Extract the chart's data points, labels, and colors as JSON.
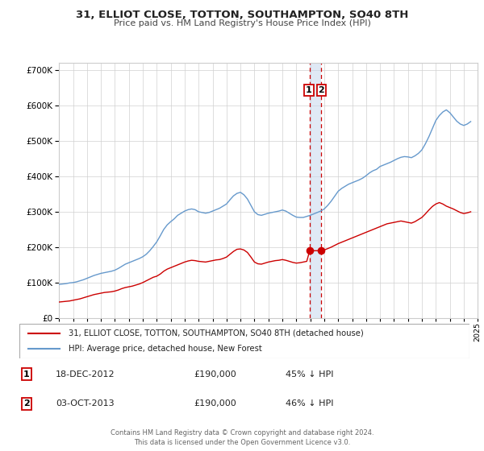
{
  "title": "31, ELLIOT CLOSE, TOTTON, SOUTHAMPTON, SO40 8TH",
  "subtitle": "Price paid vs. HM Land Registry's House Price Index (HPI)",
  "legend1": "31, ELLIOT CLOSE, TOTTON, SOUTHAMPTON, SO40 8TH (detached house)",
  "legend2": "HPI: Average price, detached house, New Forest",
  "sale1_date": "18-DEC-2012",
  "sale1_price": 190000,
  "sale1_pct": "45% ↓ HPI",
  "sale2_date": "03-OCT-2013",
  "sale2_price": 190000,
  "sale2_pct": "46% ↓ HPI",
  "sale1_x": 2012.96,
  "sale2_x": 2013.75,
  "color_red": "#cc0000",
  "color_blue": "#6699cc",
  "color_vline": "#cc0000",
  "ylim_max": 720000,
  "ylim_min": 0,
  "xlim_min": 1995,
  "xlim_max": 2025,
  "footnote1": "Contains HM Land Registry data © Crown copyright and database right 2024.",
  "footnote2": "This data is licensed under the Open Government Licence v3.0.",
  "hpi_data": {
    "years": [
      1995.0,
      1995.25,
      1995.5,
      1995.75,
      1996.0,
      1996.25,
      1996.5,
      1996.75,
      1997.0,
      1997.25,
      1997.5,
      1997.75,
      1998.0,
      1998.25,
      1998.5,
      1998.75,
      1999.0,
      1999.25,
      1999.5,
      1999.75,
      2000.0,
      2000.25,
      2000.5,
      2000.75,
      2001.0,
      2001.25,
      2001.5,
      2001.75,
      2002.0,
      2002.25,
      2002.5,
      2002.75,
      2003.0,
      2003.25,
      2003.5,
      2003.75,
      2004.0,
      2004.25,
      2004.5,
      2004.75,
      2005.0,
      2005.25,
      2005.5,
      2005.75,
      2006.0,
      2006.25,
      2006.5,
      2006.75,
      2007.0,
      2007.25,
      2007.5,
      2007.75,
      2008.0,
      2008.25,
      2008.5,
      2008.75,
      2009.0,
      2009.25,
      2009.5,
      2009.75,
      2010.0,
      2010.25,
      2010.5,
      2010.75,
      2011.0,
      2011.25,
      2011.5,
      2011.75,
      2012.0,
      2012.25,
      2012.5,
      2012.75,
      2013.0,
      2013.25,
      2013.5,
      2013.75,
      2014.0,
      2014.25,
      2014.5,
      2014.75,
      2015.0,
      2015.25,
      2015.5,
      2015.75,
      2016.0,
      2016.25,
      2016.5,
      2016.75,
      2017.0,
      2017.25,
      2017.5,
      2017.75,
      2018.0,
      2018.25,
      2018.5,
      2018.75,
      2019.0,
      2019.25,
      2019.5,
      2019.75,
      2020.0,
      2020.25,
      2020.5,
      2020.75,
      2021.0,
      2021.25,
      2021.5,
      2021.75,
      2022.0,
      2022.25,
      2022.5,
      2022.75,
      2023.0,
      2023.25,
      2023.5,
      2023.75,
      2024.0,
      2024.25,
      2024.5
    ],
    "values": [
      95000,
      96000,
      97000,
      99000,
      100000,
      102000,
      105000,
      108000,
      112000,
      116000,
      120000,
      123000,
      126000,
      128000,
      130000,
      132000,
      135000,
      140000,
      146000,
      152000,
      156000,
      160000,
      164000,
      168000,
      173000,
      180000,
      190000,
      202000,
      215000,
      232000,
      250000,
      263000,
      272000,
      280000,
      290000,
      296000,
      302000,
      306000,
      308000,
      306000,
      300000,
      298000,
      296000,
      298000,
      302000,
      306000,
      310000,
      316000,
      322000,
      334000,
      345000,
      352000,
      355000,
      348000,
      336000,
      318000,
      300000,
      292000,
      290000,
      293000,
      296000,
      298000,
      300000,
      302000,
      305000,
      302000,
      296000,
      290000,
      285000,
      284000,
      284000,
      287000,
      290000,
      294000,
      298000,
      302000,
      308000,
      318000,
      330000,
      344000,
      358000,
      366000,
      372000,
      378000,
      382000,
      386000,
      390000,
      395000,
      402000,
      410000,
      416000,
      420000,
      428000,
      432000,
      436000,
      440000,
      445000,
      450000,
      454000,
      456000,
      455000,
      453000,
      458000,
      465000,
      475000,
      492000,
      512000,
      535000,
      558000,
      572000,
      582000,
      588000,
      580000,
      568000,
      556000,
      548000,
      544000,
      548000,
      555000
    ]
  },
  "price_data": {
    "years": [
      1995.0,
      1995.25,
      1995.5,
      1995.75,
      1996.0,
      1996.25,
      1996.5,
      1996.75,
      1997.0,
      1997.25,
      1997.5,
      1997.75,
      1998.0,
      1998.25,
      1998.5,
      1998.75,
      1999.0,
      1999.25,
      1999.5,
      1999.75,
      2000.0,
      2000.25,
      2000.5,
      2000.75,
      2001.0,
      2001.25,
      2001.5,
      2001.75,
      2002.0,
      2002.25,
      2002.5,
      2002.75,
      2003.0,
      2003.25,
      2003.5,
      2003.75,
      2004.0,
      2004.25,
      2004.5,
      2004.75,
      2005.0,
      2005.25,
      2005.5,
      2005.75,
      2006.0,
      2006.25,
      2006.5,
      2006.75,
      2007.0,
      2007.25,
      2007.5,
      2007.75,
      2008.0,
      2008.25,
      2008.5,
      2008.75,
      2009.0,
      2009.25,
      2009.5,
      2009.75,
      2010.0,
      2010.25,
      2010.5,
      2010.75,
      2011.0,
      2011.25,
      2011.5,
      2011.75,
      2012.0,
      2012.25,
      2012.5,
      2012.75,
      2012.96,
      2013.75,
      2014.0,
      2014.25,
      2014.5,
      2014.75,
      2015.0,
      2015.25,
      2015.5,
      2015.75,
      2016.0,
      2016.25,
      2016.5,
      2016.75,
      2017.0,
      2017.25,
      2017.5,
      2017.75,
      2018.0,
      2018.25,
      2018.5,
      2018.75,
      2019.0,
      2019.25,
      2019.5,
      2019.75,
      2020.0,
      2020.25,
      2020.5,
      2020.75,
      2021.0,
      2021.25,
      2021.5,
      2021.75,
      2022.0,
      2022.25,
      2022.5,
      2022.75,
      2023.0,
      2023.25,
      2023.5,
      2023.75,
      2024.0,
      2024.25,
      2024.5
    ],
    "values": [
      45000,
      46000,
      47000,
      48000,
      50000,
      52000,
      54000,
      57000,
      60000,
      63000,
      66000,
      68000,
      70000,
      72000,
      73000,
      74000,
      76000,
      79000,
      83000,
      86000,
      88000,
      90000,
      93000,
      96000,
      100000,
      105000,
      110000,
      115000,
      118000,
      124000,
      132000,
      138000,
      142000,
      146000,
      150000,
      154000,
      158000,
      161000,
      163000,
      162000,
      160000,
      159000,
      158000,
      160000,
      162000,
      164000,
      165000,
      168000,
      172000,
      180000,
      188000,
      194000,
      195000,
      192000,
      185000,
      172000,
      158000,
      153000,
      152000,
      155000,
      158000,
      160000,
      162000,
      163000,
      165000,
      163000,
      160000,
      157000,
      155000,
      156000,
      158000,
      160000,
      190000,
      190000,
      192000,
      196000,
      200000,
      205000,
      210000,
      214000,
      218000,
      222000,
      226000,
      230000,
      234000,
      238000,
      242000,
      246000,
      250000,
      254000,
      258000,
      262000,
      266000,
      268000,
      270000,
      272000,
      274000,
      272000,
      270000,
      268000,
      272000,
      278000,
      284000,
      294000,
      305000,
      315000,
      322000,
      326000,
      322000,
      316000,
      312000,
      308000,
      303000,
      298000,
      295000,
      297000,
      300000
    ]
  }
}
